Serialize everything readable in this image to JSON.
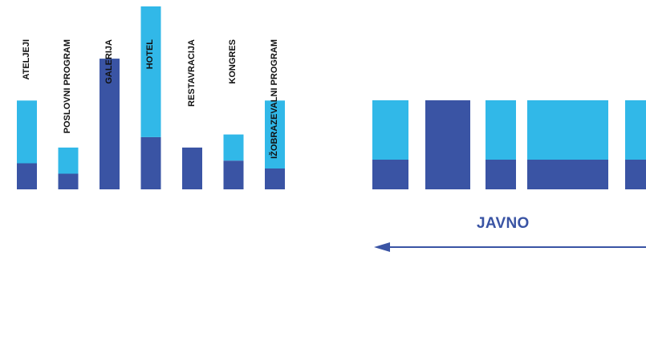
{
  "colors": {
    "dark": "#3a54a4",
    "light": "#31b8e8",
    "text": "#111111"
  },
  "chart_data": {
    "type": "bar",
    "stacked": true,
    "categories": [
      "ATELJEJI",
      "POSLOVNI PROGRAM",
      "GALERIJA",
      "HOTEL",
      "RESTAVRACIJA",
      "KONGRES",
      "IŽOBRAZEVALNI PROGRAM"
    ],
    "series": [
      {
        "values": [
          1.0,
          0.6,
          5.0,
          2.0,
          1.6,
          1.1,
          0.8
        ]
      },
      {
        "values": [
          2.4,
          1.0,
          0.0,
          5.0,
          0.0,
          1.0,
          2.6
        ]
      }
    ],
    "ylim": [
      0,
      7
    ]
  },
  "right_diagram": {
    "blocks": [
      {
        "dark": 1,
        "light": 2
      },
      {
        "dark": 3,
        "light": 0
      },
      {
        "dark": 1,
        "light": 2
      },
      {
        "dark": 1,
        "light": 2
      },
      {
        "dark": 1,
        "light": 2
      }
    ],
    "label": "JAVNO"
  }
}
